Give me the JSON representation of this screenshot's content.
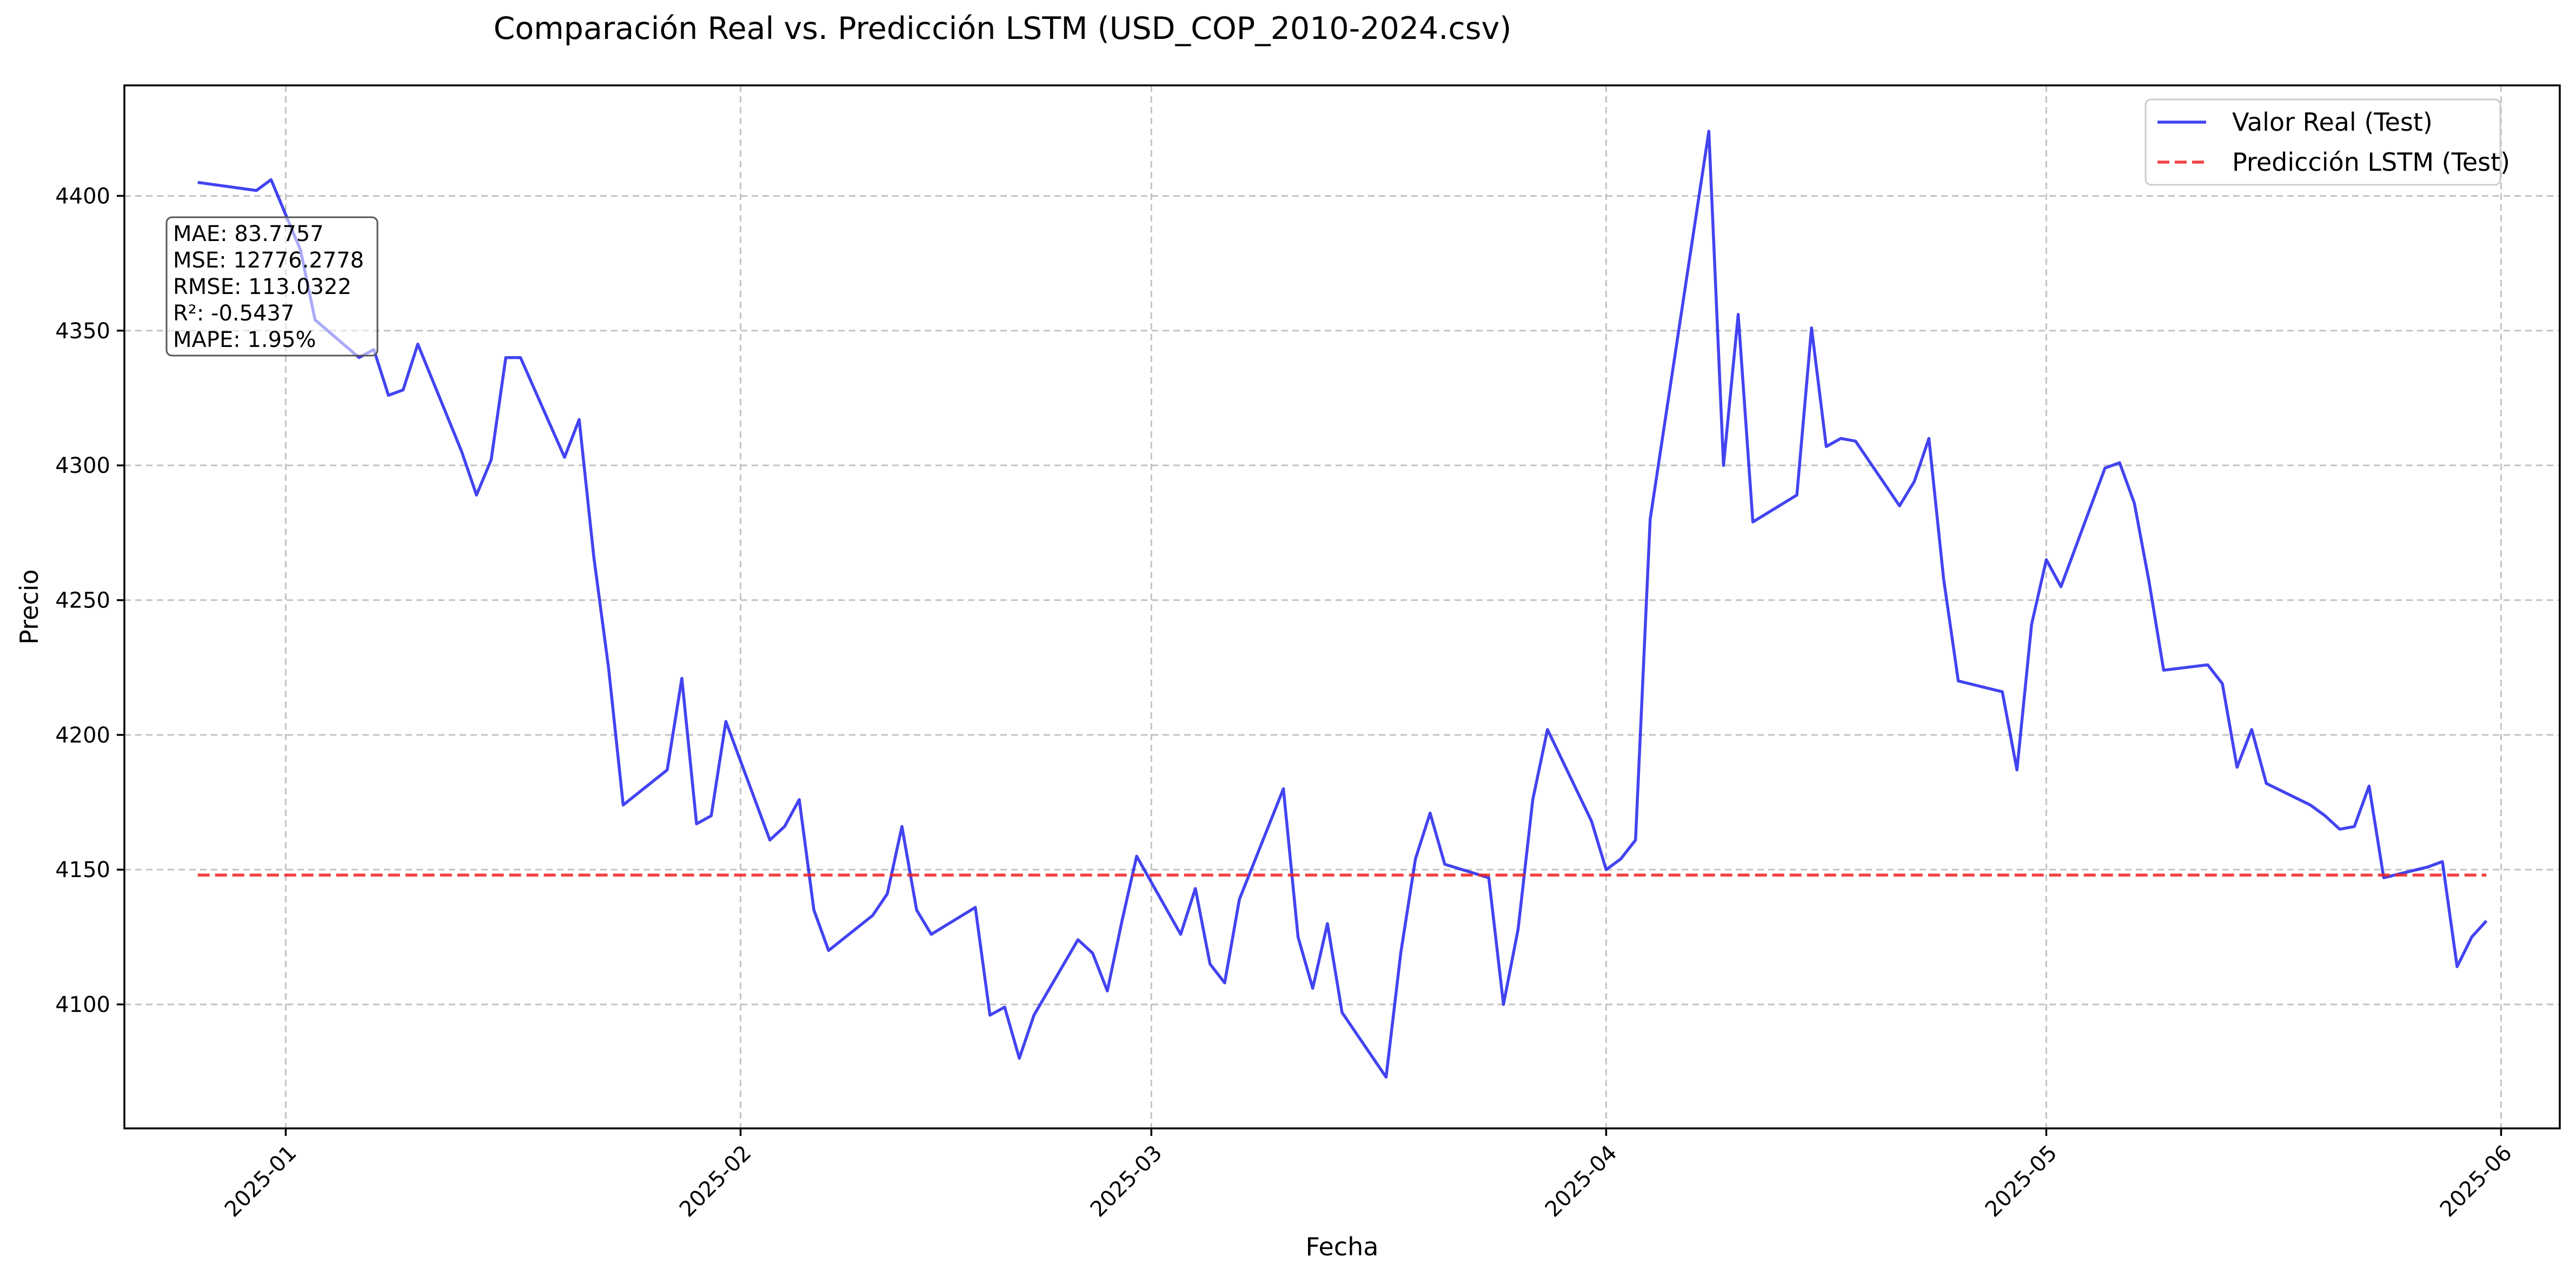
{
  "chart_data": {
    "type": "line",
    "title": "Comparación Real vs. Predicción LSTM (USD_COP_2010-2024.csv)",
    "xlabel": "Fecha",
    "ylabel": "Precio",
    "ylim": [
      4054,
      4441
    ],
    "xlim": [
      "2024-12-21",
      "2025-06-05"
    ],
    "grid": true,
    "legend_position": "top-right",
    "x_ticks": [
      {
        "date": "2025-01-01",
        "label": "2025-01"
      },
      {
        "date": "2025-02-01",
        "label": "2025-02"
      },
      {
        "date": "2025-03-01",
        "label": "2025-03"
      },
      {
        "date": "2025-04-01",
        "label": "2025-04"
      },
      {
        "date": "2025-05-01",
        "label": "2025-05"
      },
      {
        "date": "2025-06-01",
        "label": "2025-06"
      }
    ],
    "y_ticks": [
      4100,
      4150,
      4200,
      4250,
      4300,
      4350,
      4400
    ],
    "series": [
      {
        "name": "Valor Real (Test)",
        "color": "#2222ee",
        "style": "solid",
        "points": [
          [
            "2024-12-26",
            4405
          ],
          [
            "2024-12-30",
            4402
          ],
          [
            "2024-12-31",
            4406
          ],
          [
            "2025-01-02",
            4380
          ],
          [
            "2025-01-03",
            4354
          ],
          [
            "2025-01-06",
            4340
          ],
          [
            "2025-01-07",
            4343
          ],
          [
            "2025-01-08",
            4326
          ],
          [
            "2025-01-09",
            4328
          ],
          [
            "2025-01-10",
            4345
          ],
          [
            "2025-01-13",
            4305
          ],
          [
            "2025-01-14",
            4289
          ],
          [
            "2025-01-15",
            4302
          ],
          [
            "2025-01-16",
            4340
          ],
          [
            "2025-01-17",
            4340
          ],
          [
            "2025-01-20",
            4303
          ],
          [
            "2025-01-21",
            4317
          ],
          [
            "2025-01-22",
            4266
          ],
          [
            "2025-01-23",
            4225
          ],
          [
            "2025-01-24",
            4174
          ],
          [
            "2025-01-27",
            4187
          ],
          [
            "2025-01-28",
            4221
          ],
          [
            "2025-01-29",
            4167
          ],
          [
            "2025-01-30",
            4170
          ],
          [
            "2025-01-31",
            4205
          ],
          [
            "2025-02-03",
            4161
          ],
          [
            "2025-02-04",
            4166
          ],
          [
            "2025-02-05",
            4176
          ],
          [
            "2025-02-06",
            4135
          ],
          [
            "2025-02-07",
            4120
          ],
          [
            "2025-02-10",
            4133
          ],
          [
            "2025-02-11",
            4141
          ],
          [
            "2025-02-12",
            4166
          ],
          [
            "2025-02-13",
            4135
          ],
          [
            "2025-02-14",
            4126
          ],
          [
            "2025-02-17",
            4136
          ],
          [
            "2025-02-18",
            4096
          ],
          [
            "2025-02-19",
            4099
          ],
          [
            "2025-02-20",
            4080
          ],
          [
            "2025-02-21",
            4096
          ],
          [
            "2025-02-24",
            4124
          ],
          [
            "2025-02-25",
            4119
          ],
          [
            "2025-02-26",
            4105
          ],
          [
            "2025-02-27",
            4131
          ],
          [
            "2025-02-28",
            4155
          ],
          [
            "2025-03-03",
            4126
          ],
          [
            "2025-03-04",
            4143
          ],
          [
            "2025-03-05",
            4115
          ],
          [
            "2025-03-06",
            4108
          ],
          [
            "2025-03-07",
            4139
          ],
          [
            "2025-03-10",
            4180
          ],
          [
            "2025-03-11",
            4125
          ],
          [
            "2025-03-12",
            4106
          ],
          [
            "2025-03-13",
            4130
          ],
          [
            "2025-03-14",
            4097
          ],
          [
            "2025-03-17",
            4073
          ],
          [
            "2025-03-18",
            4119
          ],
          [
            "2025-03-19",
            4154
          ],
          [
            "2025-03-20",
            4171
          ],
          [
            "2025-03-21",
            4152
          ],
          [
            "2025-03-24",
            4147
          ],
          [
            "2025-03-25",
            4100
          ],
          [
            "2025-03-26",
            4128
          ],
          [
            "2025-03-27",
            4176
          ],
          [
            "2025-03-28",
            4202
          ],
          [
            "2025-03-31",
            4168
          ],
          [
            "2025-04-01",
            4150
          ],
          [
            "2025-04-02",
            4154
          ],
          [
            "2025-04-03",
            4161
          ],
          [
            "2025-04-04",
            4280
          ],
          [
            "2025-04-08",
            4424
          ],
          [
            "2025-04-09",
            4300
          ],
          [
            "2025-04-10",
            4356
          ],
          [
            "2025-04-11",
            4279
          ],
          [
            "2025-04-14",
            4289
          ],
          [
            "2025-04-15",
            4351
          ],
          [
            "2025-04-16",
            4307
          ],
          [
            "2025-04-17",
            4310
          ],
          [
            "2025-04-18",
            4309
          ],
          [
            "2025-04-21",
            4285
          ],
          [
            "2025-04-22",
            4294
          ],
          [
            "2025-04-23",
            4310
          ],
          [
            "2025-04-24",
            4258
          ],
          [
            "2025-04-25",
            4220
          ],
          [
            "2025-04-28",
            4216
          ],
          [
            "2025-04-29",
            4187
          ],
          [
            "2025-04-30",
            4241
          ],
          [
            "2025-05-01",
            4265
          ],
          [
            "2025-05-02",
            4255
          ],
          [
            "2025-05-05",
            4299
          ],
          [
            "2025-05-06",
            4301
          ],
          [
            "2025-05-07",
            4286
          ],
          [
            "2025-05-08",
            4257
          ],
          [
            "2025-05-09",
            4224
          ],
          [
            "2025-05-12",
            4226
          ],
          [
            "2025-05-13",
            4219
          ],
          [
            "2025-05-14",
            4188
          ],
          [
            "2025-05-15",
            4202
          ],
          [
            "2025-05-16",
            4182
          ],
          [
            "2025-05-19",
            4174
          ],
          [
            "2025-05-20",
            4170
          ],
          [
            "2025-05-21",
            4165
          ],
          [
            "2025-05-22",
            4166
          ],
          [
            "2025-05-23",
            4181
          ],
          [
            "2025-05-24",
            4147
          ],
          [
            "2025-05-27",
            4151
          ],
          [
            "2025-05-28",
            4153
          ],
          [
            "2025-05-29",
            4114
          ],
          [
            "2025-05-30",
            4125
          ],
          [
            "2025-05-31",
            4131
          ]
        ]
      },
      {
        "name": "Predicción LSTM (Test)",
        "color": "#ee2222",
        "style": "dashed",
        "points": [
          [
            "2024-12-26",
            4148
          ],
          [
            "2025-05-31",
            4148
          ]
        ]
      }
    ],
    "metrics_box": {
      "position": "top-left",
      "lines": [
        "MAE: 83.7757",
        "MSE: 12776.2778",
        "RMSE: 113.0322",
        "R²: -0.5437",
        "MAPE: 1.95%"
      ]
    }
  }
}
